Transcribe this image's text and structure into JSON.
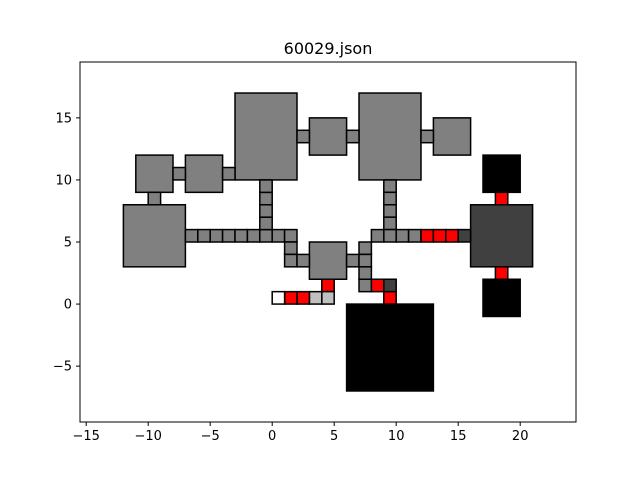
{
  "chart_data": {
    "type": "map",
    "title": "60029.json",
    "xlim": [
      -15.5,
      24.5
    ],
    "ylim": [
      -9.5,
      19.5
    ],
    "x_ticks": [
      -15,
      -10,
      -5,
      0,
      5,
      10,
      15,
      20
    ],
    "y_ticks": [
      -5,
      0,
      5,
      10,
      15
    ],
    "grid": false,
    "legend": false,
    "colors": {
      "room": "#808080",
      "dark_room": "#404040",
      "black_room": "#000000",
      "door": "#ff0000",
      "light": "#c0c0c0",
      "white": "#ffffff",
      "edge": "#000000"
    },
    "cells": [
      {
        "x0": -12,
        "y0": 3,
        "x1": -7,
        "y1": 8,
        "fill": "room"
      },
      {
        "x0": -11,
        "y0": 9,
        "x1": -8,
        "y1": 12,
        "fill": "room"
      },
      {
        "x0": -7,
        "y0": 9,
        "x1": -4,
        "y1": 12,
        "fill": "room"
      },
      {
        "x0": -3,
        "y0": 10,
        "x1": 2,
        "y1": 17,
        "fill": "room"
      },
      {
        "x0": 3,
        "y0": 12,
        "x1": 6,
        "y1": 15,
        "fill": "room"
      },
      {
        "x0": 7,
        "y0": 10,
        "x1": 12,
        "y1": 17,
        "fill": "room"
      },
      {
        "x0": 13,
        "y0": 12,
        "x1": 16,
        "y1": 15,
        "fill": "room"
      },
      {
        "x0": 3,
        "y0": 2,
        "x1": 6,
        "y1": 5,
        "fill": "room"
      },
      {
        "x0": 16,
        "y0": 3,
        "x1": 21,
        "y1": 8,
        "fill": "dark_room"
      },
      {
        "x0": 17,
        "y0": 9,
        "x1": 20,
        "y1": 12,
        "fill": "black_room"
      },
      {
        "x0": 17,
        "y0": -1,
        "x1": 20,
        "y1": 2,
        "fill": "black_room"
      },
      {
        "x0": 6,
        "y0": -7,
        "x1": 13,
        "y1": 0,
        "fill": "black_room"
      },
      {
        "x0": -8,
        "y0": 11,
        "x1": -7,
        "y1": 10,
        "fill": "room"
      },
      {
        "x0": -4,
        "y0": 11,
        "x1": -3,
        "y1": 10,
        "fill": "room"
      },
      {
        "x0": 2,
        "y0": 14,
        "x1": 3,
        "y1": 13,
        "fill": "room"
      },
      {
        "x0": 6,
        "y0": 14,
        "x1": 7,
        "y1": 13,
        "fill": "room"
      },
      {
        "x0": 12,
        "y0": 14,
        "x1": 13,
        "y1": 13,
        "fill": "room"
      },
      {
        "x0": -10,
        "y0": 8,
        "x1": -9,
        "y1": 9,
        "fill": "room"
      },
      {
        "x0": -7,
        "y0": 5,
        "x1": -6,
        "y1": 6,
        "fill": "room"
      },
      {
        "x0": -6,
        "y0": 5,
        "x1": -5,
        "y1": 6,
        "fill": "room"
      },
      {
        "x0": -5,
        "y0": 5,
        "x1": -4,
        "y1": 6,
        "fill": "room"
      },
      {
        "x0": -4,
        "y0": 5,
        "x1": -3,
        "y1": 6,
        "fill": "room"
      },
      {
        "x0": -3,
        "y0": 5,
        "x1": -2,
        "y1": 6,
        "fill": "room"
      },
      {
        "x0": -2,
        "y0": 5,
        "x1": -1,
        "y1": 6,
        "fill": "room"
      },
      {
        "x0": -1,
        "y0": 5,
        "x1": 0,
        "y1": 6,
        "fill": "room"
      },
      {
        "x0": 0,
        "y0": 5,
        "x1": 1,
        "y1": 6,
        "fill": "room"
      },
      {
        "x0": 1,
        "y0": 5,
        "x1": 2,
        "y1": 6,
        "fill": "room"
      },
      {
        "x0": -1,
        "y0": 6,
        "x1": 0,
        "y1": 7,
        "fill": "room"
      },
      {
        "x0": -1,
        "y0": 7,
        "x1": 0,
        "y1": 8,
        "fill": "room"
      },
      {
        "x0": -1,
        "y0": 8,
        "x1": 0,
        "y1": 9,
        "fill": "room"
      },
      {
        "x0": -1,
        "y0": 9,
        "x1": 0,
        "y1": 10,
        "fill": "room"
      },
      {
        "x0": 1,
        "y0": 4,
        "x1": 2,
        "y1": 5,
        "fill": "room"
      },
      {
        "x0": 1,
        "y0": 3,
        "x1": 2,
        "y1": 4,
        "fill": "room"
      },
      {
        "x0": 2,
        "y0": 3,
        "x1": 3,
        "y1": 4,
        "fill": "room"
      },
      {
        "x0": 9,
        "y0": 9,
        "x1": 10,
        "y1": 10,
        "fill": "room"
      },
      {
        "x0": 9,
        "y0": 8,
        "x1": 10,
        "y1": 9,
        "fill": "room"
      },
      {
        "x0": 9,
        "y0": 7,
        "x1": 10,
        "y1": 8,
        "fill": "room"
      },
      {
        "x0": 9,
        "y0": 6,
        "x1": 10,
        "y1": 7,
        "fill": "room"
      },
      {
        "x0": 9,
        "y0": 5,
        "x1": 10,
        "y1": 6,
        "fill": "room"
      },
      {
        "x0": 8,
        "y0": 5,
        "x1": 9,
        "y1": 6,
        "fill": "room"
      },
      {
        "x0": 10,
        "y0": 5,
        "x1": 11,
        "y1": 6,
        "fill": "room"
      },
      {
        "x0": 11,
        "y0": 5,
        "x1": 12,
        "y1": 6,
        "fill": "room"
      },
      {
        "x0": 12,
        "y0": 5,
        "x1": 13,
        "y1": 6,
        "fill": "door"
      },
      {
        "x0": 13,
        "y0": 5,
        "x1": 14,
        "y1": 6,
        "fill": "door"
      },
      {
        "x0": 14,
        "y0": 5,
        "x1": 15,
        "y1": 6,
        "fill": "door"
      },
      {
        "x0": 15,
        "y0": 5,
        "x1": 16,
        "y1": 6,
        "fill": "dark_room"
      },
      {
        "x0": 7,
        "y0": 4,
        "x1": 8,
        "y1": 5,
        "fill": "room"
      },
      {
        "x0": 6,
        "y0": 3,
        "x1": 7,
        "y1": 4,
        "fill": "room"
      },
      {
        "x0": 7,
        "y0": 3,
        "x1": 8,
        "y1": 4,
        "fill": "room"
      },
      {
        "x0": 7,
        "y0": 2,
        "x1": 8,
        "y1": 3,
        "fill": "room"
      },
      {
        "x0": 7,
        "y0": 1,
        "x1": 8,
        "y1": 2,
        "fill": "room"
      },
      {
        "x0": 8,
        "y0": 1,
        "x1": 9,
        "y1": 2,
        "fill": "door"
      },
      {
        "x0": 9,
        "y0": 1,
        "x1": 10,
        "y1": 2,
        "fill": "dark_room"
      },
      {
        "x0": 9,
        "y0": 0,
        "x1": 10,
        "y1": 1,
        "fill": "door"
      },
      {
        "x0": 4,
        "y0": 1,
        "x1": 5,
        "y1": 2,
        "fill": "door"
      },
      {
        "x0": 4,
        "y0": 0,
        "x1": 5,
        "y1": 1,
        "fill": "light"
      },
      {
        "x0": 3,
        "y0": 0,
        "x1": 4,
        "y1": 1,
        "fill": "light"
      },
      {
        "x0": 2,
        "y0": 0,
        "x1": 3,
        "y1": 1,
        "fill": "door"
      },
      {
        "x0": 1,
        "y0": 0,
        "x1": 2,
        "y1": 1,
        "fill": "door"
      },
      {
        "x0": 0,
        "y0": 0,
        "x1": 1,
        "y1": 1,
        "fill": "white"
      },
      {
        "x0": 18,
        "y0": 8,
        "x1": 19,
        "y1": 9,
        "fill": "door"
      },
      {
        "x0": 18,
        "y0": 2,
        "x1": 19,
        "y1": 3,
        "fill": "door"
      }
    ]
  }
}
